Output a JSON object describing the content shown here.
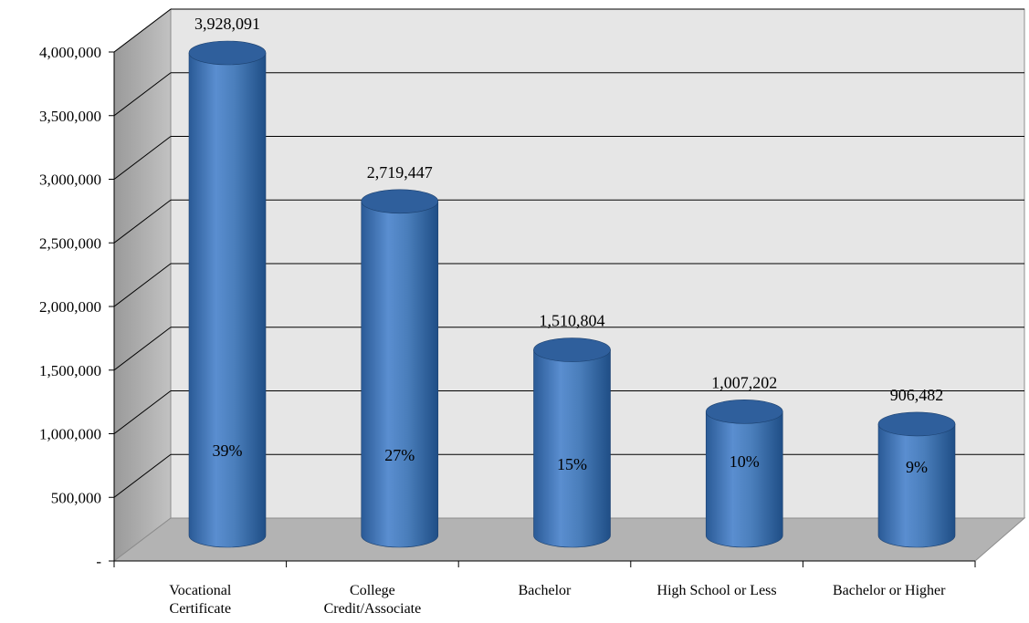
{
  "chart_data": {
    "type": "bar",
    "style": "3d-cylinder",
    "categories": [
      [
        "Vocational",
        "Certificate"
      ],
      [
        "College",
        "Credit/Associate"
      ],
      [
        "Bachelor"
      ],
      [
        "High School or Less"
      ],
      [
        "Bachelor or Higher"
      ]
    ],
    "values": [
      3928091,
      2719447,
      1510804,
      1007202,
      906482
    ],
    "value_labels": [
      "3,928,091",
      "2,719,447",
      "1,510,804",
      "1,007,202",
      "906,482"
    ],
    "percent_labels": [
      "39%",
      "27%",
      "15%",
      "10%",
      "9%"
    ],
    "y_ticks": [
      {
        "value": 0,
        "label": "-"
      },
      {
        "value": 500000,
        "label": "500,000"
      },
      {
        "value": 1000000,
        "label": "1,000,000"
      },
      {
        "value": 1500000,
        "label": "1,500,000"
      },
      {
        "value": 2000000,
        "label": "2,000,000"
      },
      {
        "value": 2500000,
        "label": "2,500,000"
      },
      {
        "value": 3000000,
        "label": "3,000,000"
      },
      {
        "value": 3500000,
        "label": "3,500,000"
      },
      {
        "value": 4000000,
        "label": "4,000,000"
      }
    ],
    "ylim": [
      0,
      4000000
    ],
    "grid": true,
    "colors": {
      "bar": "#4a7ebb",
      "bar_dark": "#1f4e86",
      "bar_top": "#2f5f9c",
      "wall": "#e6e6e6",
      "floor": "#b3b3b3",
      "side_wall": "#a6a6a6",
      "gridline": "#000000"
    }
  }
}
